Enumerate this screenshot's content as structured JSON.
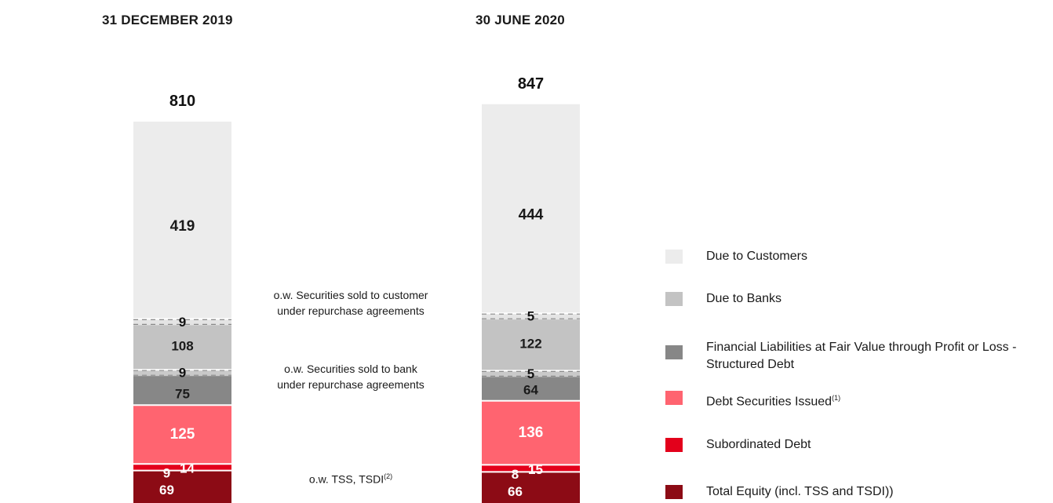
{
  "chart_data": {
    "type": "bar",
    "stacked": true,
    "categories": [
      "31 DECEMBER 2019",
      "30 JUNE 2020"
    ],
    "totals": [
      810,
      847
    ],
    "series": [
      {
        "name": "Total Equity (incl. TSS and TSDI))",
        "values": [
          69,
          66
        ],
        "color": "#8c0b15",
        "label_color": "#ffffff"
      },
      {
        "name": "Subordinated  Debt",
        "values": [
          14,
          15
        ],
        "color": "#e3001b",
        "label_color": "#ffffff"
      },
      {
        "name": "Debt Securities Issued",
        "values": [
          125,
          136
        ],
        "color": "#ff6470",
        "label_color": "#ffffff"
      },
      {
        "name": "Financial Liabilities at Fair Value through Profit or Loss - Structured Debt",
        "values": [
          75,
          64
        ],
        "color": "#878787",
        "label_color": "#1a1a1a"
      },
      {
        "name": "Due to Banks",
        "values": [
          108,
          122
        ],
        "color": "#c3c3c3",
        "label_color": "#1a1a1a"
      },
      {
        "name": "Due to Customers",
        "values": [
          419,
          444
        ],
        "color": "#ececec",
        "label_color": "#1a1a1a"
      }
    ],
    "sub_values": {
      "tss_tsdi": [
        9,
        8
      ],
      "securities_sold_to_bank": [
        9,
        5
      ],
      "securities_sold_to_customer": [
        9,
        5
      ]
    }
  },
  "headers": {
    "col1": "31 DECEMBER 2019",
    "col2": "30 JUNE 2020"
  },
  "annotations": {
    "customer_line1": "o.w. Securities sold to customer",
    "customer_line2": "under repurchase agreements",
    "bank_line1": "o.w. Securities sold to bank",
    "bank_line2": "under repurchase agreements",
    "tss": "o.w. TSS, TSDI",
    "tss_sup": "(2)"
  },
  "legend": [
    {
      "label": "Due to Customers",
      "sup": "",
      "color": "#ececec"
    },
    {
      "label": "Due to Banks",
      "sup": "",
      "color": "#c3c3c3"
    },
    {
      "label": "Financial Liabilities at Fair Value through Profit or Loss - Structured Debt",
      "sup": "",
      "color": "#878787"
    },
    {
      "label": "Debt Securities Issued",
      "sup": "(1)",
      "color": "#ff6470"
    },
    {
      "label": "Subordinated  Debt",
      "sup": "",
      "color": "#e3001b"
    },
    {
      "label": "Total Equity (incl. TSS and TSDI))",
      "sup": "",
      "color": "#8c0b15"
    }
  ]
}
